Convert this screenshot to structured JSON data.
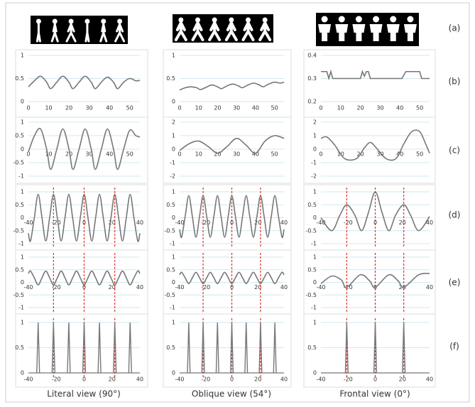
{
  "row_labels": [
    "(a)",
    "(b)",
    "(c)",
    "(d)",
    "(e)",
    "(f)"
  ],
  "column_labels": [
    "Literal view (90°)",
    "Oblique view (54°)",
    "Frontal view (0°)"
  ],
  "chart_data": [
    {
      "type": "line",
      "smooth": true,
      "color": "#777777",
      "grid": true,
      "xlim": [
        0,
        55
      ],
      "ylim": [
        0,
        1
      ],
      "xticks": [
        0,
        10,
        20,
        30,
        40,
        50
      ],
      "yticks": [
        0,
        0.5,
        1
      ],
      "x": [
        0,
        3,
        6,
        9,
        11,
        14,
        17,
        20,
        22,
        25,
        28,
        31,
        33,
        36,
        39,
        42,
        44,
        47,
        50,
        53,
        55
      ],
      "values": [
        0.32,
        0.45,
        0.55,
        0.42,
        0.28,
        0.42,
        0.55,
        0.42,
        0.28,
        0.42,
        0.55,
        0.42,
        0.28,
        0.42,
        0.53,
        0.42,
        0.28,
        0.42,
        0.5,
        0.45,
        0.46
      ]
    },
    {
      "type": "line",
      "smooth": true,
      "color": "#777777",
      "grid": true,
      "xlim": [
        0,
        55
      ],
      "ylim": [
        0,
        1
      ],
      "xticks": [
        0,
        10,
        20,
        30,
        40,
        50
      ],
      "yticks": [
        0,
        0.5,
        1
      ],
      "x": [
        0,
        3,
        6,
        9,
        11,
        14,
        17,
        20,
        22,
        25,
        28,
        31,
        33,
        36,
        39,
        42,
        44,
        47,
        50,
        53,
        55
      ],
      "values": [
        0.25,
        0.3,
        0.32,
        0.3,
        0.26,
        0.31,
        0.36,
        0.32,
        0.28,
        0.34,
        0.38,
        0.34,
        0.3,
        0.36,
        0.4,
        0.36,
        0.32,
        0.38,
        0.42,
        0.4,
        0.42
      ]
    },
    {
      "type": "line",
      "smooth": false,
      "color": "#777777",
      "grid": true,
      "xlim": [
        0,
        55
      ],
      "ylim": [
        0.2,
        0.4
      ],
      "xticks": [
        0,
        10,
        20,
        30,
        40,
        50
      ],
      "yticks": [
        0.2,
        0.3,
        0.4
      ],
      "x": [
        0,
        3,
        4,
        5,
        6,
        7,
        8,
        20,
        21,
        22,
        23,
        24,
        25,
        26,
        41,
        43,
        50,
        51,
        55
      ],
      "values": [
        0.33,
        0.33,
        0.3,
        0.33,
        0.3,
        0.3,
        0.3,
        0.3,
        0.33,
        0.31,
        0.33,
        0.33,
        0.3,
        0.3,
        0.3,
        0.33,
        0.33,
        0.3,
        0.3
      ]
    },
    {
      "type": "line",
      "smooth": true,
      "color": "#777777",
      "grid": true,
      "xlim": [
        0,
        55
      ],
      "ylim": [
        -1,
        1
      ],
      "xticks": [
        0,
        10,
        20,
        30,
        40,
        50
      ],
      "yticks": [
        -1,
        -0.5,
        0,
        0.5,
        1
      ],
      "x": [
        0,
        3,
        6,
        9,
        11,
        14,
        17,
        20,
        22,
        25,
        28,
        31,
        33,
        36,
        39,
        42,
        44,
        47,
        50,
        53,
        55
      ],
      "values": [
        -0.1,
        0.5,
        0.75,
        0,
        -0.75,
        0,
        0.75,
        0,
        -0.75,
        0,
        0.75,
        0,
        -0.75,
        0,
        0.75,
        0,
        -0.75,
        0,
        0.7,
        0.5,
        0.45
      ]
    },
    {
      "type": "line",
      "smooth": true,
      "color": "#777777",
      "grid": true,
      "xlim": [
        0,
        55
      ],
      "ylim": [
        -2,
        2
      ],
      "xticks": [
        0,
        10,
        20,
        30,
        40,
        50
      ],
      "yticks": [
        -2,
        -1,
        0,
        1,
        2
      ],
      "x": [
        0,
        5,
        10,
        15,
        20,
        25,
        30,
        35,
        40,
        45,
        50,
        55
      ],
      "values": [
        -0.1,
        0.4,
        0.6,
        0.2,
        -0.3,
        0.2,
        0.8,
        0.3,
        -0.3,
        0.6,
        1,
        0.8
      ]
    },
    {
      "type": "line",
      "smooth": true,
      "color": "#777777",
      "grid": true,
      "xlim": [
        0,
        55
      ],
      "ylim": [
        -2,
        2
      ],
      "xticks": [
        0,
        10,
        20,
        30,
        40,
        50
      ],
      "yticks": [
        -2,
        -1,
        0,
        1,
        2
      ],
      "x": [
        0,
        3,
        7,
        12,
        18,
        22,
        25,
        28,
        33,
        38,
        42,
        46,
        50,
        53,
        55
      ],
      "values": [
        0.8,
        0.9,
        0.3,
        -0.7,
        -0.7,
        0.1,
        0.5,
        0.1,
        -0.7,
        -0.7,
        0.4,
        1.3,
        1.3,
        0.4,
        -0.3
      ]
    },
    {
      "type": "line",
      "smooth": true,
      "color": "#777777",
      "grid": true,
      "xlim": [
        -40,
        40
      ],
      "ylim": [
        -1,
        1
      ],
      "xticks": [
        -40,
        -20,
        0,
        20,
        40
      ],
      "yticks": [
        -1,
        -0.5,
        0,
        0.5,
        1
      ],
      "vlines": [
        -22,
        0,
        22
      ],
      "x": [
        -40,
        -38.5,
        -35.75,
        -33,
        -30.25,
        -27.5,
        -24.75,
        -22,
        -19.25,
        -16.5,
        -13.75,
        -11,
        -8.25,
        -5.5,
        -2.75,
        0,
        2.75,
        5.5,
        8.25,
        11,
        13.75,
        16.5,
        19.25,
        22,
        24.75,
        27.5,
        30.25,
        33,
        35.75,
        38.5,
        40
      ],
      "values": [
        -0.6,
        -0.9,
        0,
        0.9,
        0,
        -0.9,
        0,
        0.9,
        0,
        -0.9,
        0,
        0.9,
        0,
        -0.9,
        0,
        0.9,
        0,
        -0.9,
        0,
        0.9,
        0,
        -0.9,
        0,
        0.9,
        0,
        -0.9,
        0,
        0.9,
        0,
        -0.9,
        -0.6
      ]
    },
    {
      "type": "line",
      "smooth": true,
      "color": "#777777",
      "grid": true,
      "xlim": [
        -40,
        40
      ],
      "ylim": [
        -1,
        1
      ],
      "xticks": [
        -40,
        -20,
        0,
        20,
        40
      ],
      "yticks": [
        -1,
        -0.5,
        0,
        0.5,
        1
      ],
      "vlines": [
        -22,
        0,
        22
      ],
      "x": [
        -40,
        -38.5,
        -35.75,
        -33,
        -30.25,
        -27.5,
        -24.75,
        -22,
        -19.25,
        -16.5,
        -13.75,
        -11,
        -8.25,
        -5.5,
        -2.75,
        0,
        2.75,
        5.5,
        8.25,
        11,
        13.75,
        16.5,
        19.25,
        22,
        24.75,
        27.5,
        30.25,
        33,
        35.75,
        38.5,
        40
      ],
      "values": [
        -0.45,
        -0.75,
        0.05,
        0.85,
        0.05,
        -0.75,
        0.05,
        0.85,
        0.05,
        -0.75,
        0.05,
        0.85,
        0.05,
        -0.75,
        0.05,
        0.85,
        0.05,
        -0.75,
        0.05,
        0.85,
        0.05,
        -0.75,
        0.05,
        0.85,
        0.05,
        -0.75,
        0.05,
        0.85,
        0.05,
        -0.75,
        -0.45
      ]
    },
    {
      "type": "line",
      "smooth": true,
      "color": "#777777",
      "grid": true,
      "xlim": [
        -40,
        40
      ],
      "ylim": [
        -1,
        1
      ],
      "xticks": [
        -40,
        -20,
        0,
        20,
        40
      ],
      "yticks": [
        -1,
        -0.5,
        0,
        0.5,
        1
      ],
      "vlines": [
        -21,
        0,
        21
      ],
      "x": [
        -40,
        -32,
        -26,
        -21,
        -15,
        -10,
        -5,
        0,
        5,
        10,
        15,
        21,
        26,
        32,
        40
      ],
      "values": [
        0,
        -0.5,
        0.1,
        0.5,
        0.1,
        -0.5,
        0.2,
        1,
        0.2,
        -0.5,
        0.1,
        0.5,
        0.1,
        -0.5,
        0.05
      ]
    },
    {
      "type": "line",
      "smooth": true,
      "color": "#777777",
      "grid": true,
      "xlim": [
        -40,
        40
      ],
      "ylim": [
        -1,
        1
      ],
      "xticks": [
        -40,
        -20,
        0,
        20,
        40
      ],
      "yticks": [
        -1,
        -0.5,
        0,
        0.5,
        1
      ],
      "vlines": [
        -22,
        0,
        22
      ],
      "x": [
        -40,
        -38.5,
        -35.75,
        -33,
        -30.25,
        -27.5,
        -24.75,
        -22,
        -19.25,
        -16.5,
        -13.75,
        -11,
        -8.25,
        -5.5,
        -2.75,
        0,
        2.75,
        5.5,
        8.25,
        11,
        13.75,
        16.5,
        19.25,
        22,
        24.75,
        27.5,
        30.25,
        33,
        35.75,
        38.5,
        40
      ],
      "values": [
        0.35,
        0.45,
        0.18,
        -0.1,
        0.18,
        0.45,
        0.18,
        -0.1,
        0.18,
        0.45,
        0.18,
        -0.1,
        0.18,
        0.45,
        0.18,
        -0.1,
        0.18,
        0.45,
        0.18,
        -0.1,
        0.18,
        0.45,
        0.18,
        -0.1,
        0.18,
        0.45,
        0.18,
        -0.1,
        0.18,
        0.45,
        0.35
      ]
    },
    {
      "type": "line",
      "smooth": true,
      "color": "#777777",
      "grid": true,
      "xlim": [
        -40,
        40
      ],
      "ylim": [
        -1,
        1
      ],
      "xticks": [
        -40,
        -20,
        0,
        20,
        40
      ],
      "yticks": [
        -1,
        -0.5,
        0,
        0.5,
        1
      ],
      "vlines": [
        -22,
        0,
        22
      ],
      "x": [
        -40,
        -38.5,
        -35.75,
        -33,
        -30.25,
        -27.5,
        -24.75,
        -22,
        -19.25,
        -16.5,
        -13.75,
        -11,
        -8.25,
        -5.5,
        -2.75,
        0,
        2.75,
        5.5,
        8.25,
        11,
        13.75,
        16.5,
        19.25,
        22,
        24.75,
        27.5,
        30.25,
        33,
        35.75,
        38.5,
        40
      ],
      "values": [
        0.3,
        0.4,
        0.18,
        -0.05,
        0.18,
        0.4,
        0.18,
        -0.05,
        0.18,
        0.4,
        0.18,
        -0.05,
        0.18,
        0.4,
        0.18,
        -0.05,
        0.18,
        0.4,
        0.18,
        -0.05,
        0.18,
        0.4,
        0.18,
        -0.05,
        0.18,
        0.4,
        0.18,
        -0.05,
        0.18,
        0.4,
        0.3
      ]
    },
    {
      "type": "line",
      "smooth": true,
      "color": "#777777",
      "grid": true,
      "xlim": [
        -40,
        40
      ],
      "ylim": [
        -1,
        1
      ],
      "xticks": [
        -40,
        -20,
        0,
        20,
        40
      ],
      "yticks": [
        -1,
        -0.5,
        0,
        0.5,
        1
      ],
      "vlines": [
        -21,
        0,
        21
      ],
      "x": [
        -40,
        -32,
        -25,
        -21,
        -11,
        -4,
        0,
        10,
        17,
        21,
        32,
        40
      ],
      "values": [
        -0.05,
        0.25,
        0.1,
        -0.2,
        0.3,
        0.05,
        -0.2,
        0.3,
        0.05,
        -0.2,
        0.3,
        0.35
      ]
    },
    {
      "type": "spike",
      "color": "#777777",
      "grid": true,
      "xlim": [
        -40,
        40
      ],
      "ylim": [
        0,
        1
      ],
      "xticks": [
        -40,
        -20,
        0,
        20,
        40
      ],
      "yticks": [
        0,
        0.5,
        1
      ],
      "vlines": [
        -22,
        0,
        22
      ],
      "x": [
        -33,
        -22,
        -11,
        0,
        11,
        22,
        33
      ],
      "values": [
        1,
        1,
        1,
        1,
        1,
        1,
        1
      ]
    },
    {
      "type": "spike",
      "color": "#777777",
      "grid": true,
      "xlim": [
        -40,
        40
      ],
      "ylim": [
        0,
        1
      ],
      "xticks": [
        -40,
        -20,
        0,
        20,
        40
      ],
      "yticks": [
        0,
        0.5,
        1
      ],
      "vlines": [
        -22,
        0,
        22
      ],
      "x": [
        -33,
        -22,
        -11,
        0,
        11,
        22,
        33
      ],
      "values": [
        1,
        1,
        1,
        1,
        1,
        1,
        1
      ]
    },
    {
      "type": "spike",
      "color": "#777777",
      "grid": true,
      "xlim": [
        -40,
        40
      ],
      "ylim": [
        0,
        1
      ],
      "xticks": [
        -40,
        -20,
        0,
        20,
        40
      ],
      "yticks": [
        0,
        0.5,
        1
      ],
      "vlines": [
        -21,
        0,
        21
      ],
      "x": [
        -21,
        0,
        21
      ],
      "values": [
        1,
        1,
        1
      ]
    }
  ]
}
